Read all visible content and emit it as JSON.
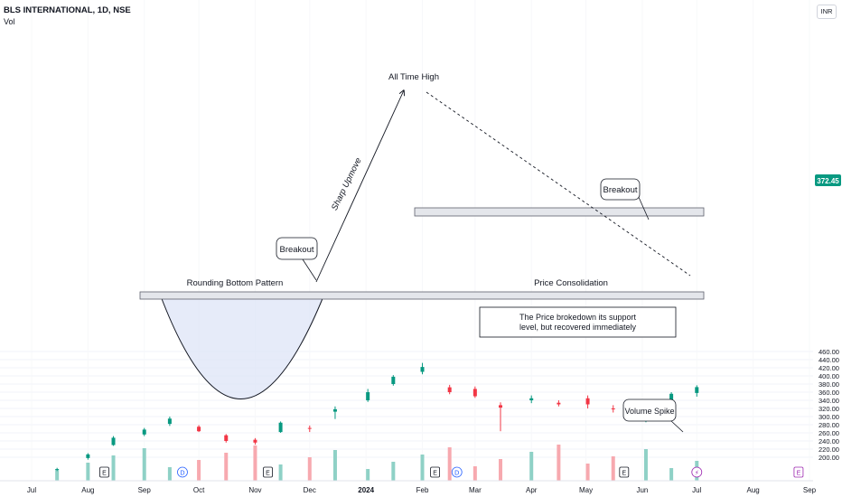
{
  "header": {
    "title": "BLS INTERNATIONAL, 1D, NSE",
    "indicator": "Vol",
    "currency": "INR"
  },
  "price_badge": {
    "value": "372.45",
    "color": "#089981"
  },
  "colors": {
    "up": "#089981",
    "down": "#f23645",
    "vol_up": "#8fd1c6",
    "vol_down": "#f7a9af"
  },
  "annotations": {
    "all_time_high": "All Time High",
    "sharp_upmove": "Sharp Upmove",
    "breakout_1": "Breakout",
    "breakout_2": "Breakout",
    "rounding_bottom": "Rounding Bottom Pattern",
    "price_consolidation": "Price Consolidation",
    "support_note_1": "The Price brokedown its support",
    "support_note_2": "level, but recovered immediately",
    "volume_spike": "Volume Spike"
  },
  "event_markers": [
    {
      "label": "E",
      "date": "2023-08-10",
      "type": "earnings"
    },
    {
      "label": "D",
      "date": "2023-09-22",
      "type": "dividend"
    },
    {
      "label": "E",
      "date": "2023-11-08",
      "type": "earnings"
    },
    {
      "label": "E",
      "date": "2024-02-08",
      "type": "earnings"
    },
    {
      "label": "D",
      "date": "2024-02-20",
      "type": "dividend"
    },
    {
      "label": "E",
      "date": "2024-05-22",
      "type": "earnings"
    },
    {
      "label": "⚡",
      "date": "2024-07-01",
      "type": "split"
    },
    {
      "label": "E",
      "date": "2024-08-26",
      "type": "earnings"
    }
  ],
  "chart_data": {
    "type": "candlestick",
    "title": "BLS INTERNATIONAL, 1D, NSE",
    "x_ticks": [
      "Jul",
      "Aug",
      "Sep",
      "Oct",
      "Nov",
      "Dec",
      "2024",
      "Feb",
      "Mar",
      "Apr",
      "May",
      "Jun",
      "Jul",
      "Aug",
      "Sep"
    ],
    "y_ticks": [
      200,
      220,
      240,
      260,
      280,
      300,
      320,
      340,
      360,
      380,
      400,
      420,
      440,
      460
    ],
    "ylim": [
      186,
      470
    ],
    "last_price": 372.45,
    "levels": {
      "rounding_bottom_neckline": [
        297,
        302
      ],
      "consolidation_resistance": [
        349,
        354
      ]
    },
    "trendline": {
      "from": {
        "date": "2024-02-02",
        "price": 430
      },
      "to": {
        "date": "2024-07-01",
        "price": 318
      }
    },
    "arrow_sharp_upmove": {
      "from": {
        "date": "2023-12-12",
        "price": 306
      },
      "to": {
        "date": "2024-01-31",
        "price": 432
      }
    },
    "candles": [
      {
        "x": "2023-07-15",
        "o": 170,
        "h": 174,
        "l": 166,
        "c": 171
      },
      {
        "x": "2023-08-01",
        "o": 198,
        "h": 210,
        "l": 194,
        "c": 207
      },
      {
        "x": "2023-08-15",
        "o": 230,
        "h": 252,
        "l": 228,
        "c": 248
      },
      {
        "x": "2023-09-01",
        "o": 256,
        "h": 272,
        "l": 252,
        "c": 268
      },
      {
        "x": "2023-09-15",
        "o": 282,
        "h": 300,
        "l": 277,
        "c": 295
      },
      {
        "x": "2023-10-01",
        "o": 275,
        "h": 279,
        "l": 262,
        "c": 264
      },
      {
        "x": "2023-10-16",
        "o": 254,
        "h": 257,
        "l": 236,
        "c": 240
      },
      {
        "x": "2023-11-01",
        "o": 243,
        "h": 247,
        "l": 231,
        "c": 236
      },
      {
        "x": "2023-11-15",
        "o": 262,
        "h": 288,
        "l": 260,
        "c": 285
      },
      {
        "x": "2023-12-01",
        "o": 272,
        "h": 278,
        "l": 262,
        "c": 270
      },
      {
        "x": "2023-12-15",
        "o": 312,
        "h": 325,
        "l": 294,
        "c": 318
      },
      {
        "x": "2024-01-02",
        "o": 340,
        "h": 368,
        "l": 336,
        "c": 360
      },
      {
        "x": "2024-01-16",
        "o": 380,
        "h": 402,
        "l": 376,
        "c": 398
      },
      {
        "x": "2024-02-01",
        "o": 410,
        "h": 432,
        "l": 404,
        "c": 422
      },
      {
        "x": "2024-02-16",
        "o": 372,
        "h": 378,
        "l": 355,
        "c": 360
      },
      {
        "x": "2024-03-01",
        "o": 368,
        "h": 374,
        "l": 346,
        "c": 350
      },
      {
        "x": "2024-03-15",
        "o": 328,
        "h": 335,
        "l": 264,
        "c": 322
      },
      {
        "x": "2024-04-01",
        "o": 340,
        "h": 352,
        "l": 333,
        "c": 345
      },
      {
        "x": "2024-04-16",
        "o": 334,
        "h": 340,
        "l": 325,
        "c": 330
      },
      {
        "x": "2024-05-02",
        "o": 345,
        "h": 352,
        "l": 320,
        "c": 330
      },
      {
        "x": "2024-05-16",
        "o": 320,
        "h": 328,
        "l": 310,
        "c": 318
      },
      {
        "x": "2024-06-03",
        "o": 300,
        "h": 312,
        "l": 286,
        "c": 308
      },
      {
        "x": "2024-06-17",
        "o": 340,
        "h": 360,
        "l": 336,
        "c": 356
      },
      {
        "x": "2024-07-01",
        "o": 358,
        "h": 377,
        "l": 349,
        "c": 372.45
      }
    ]
  }
}
